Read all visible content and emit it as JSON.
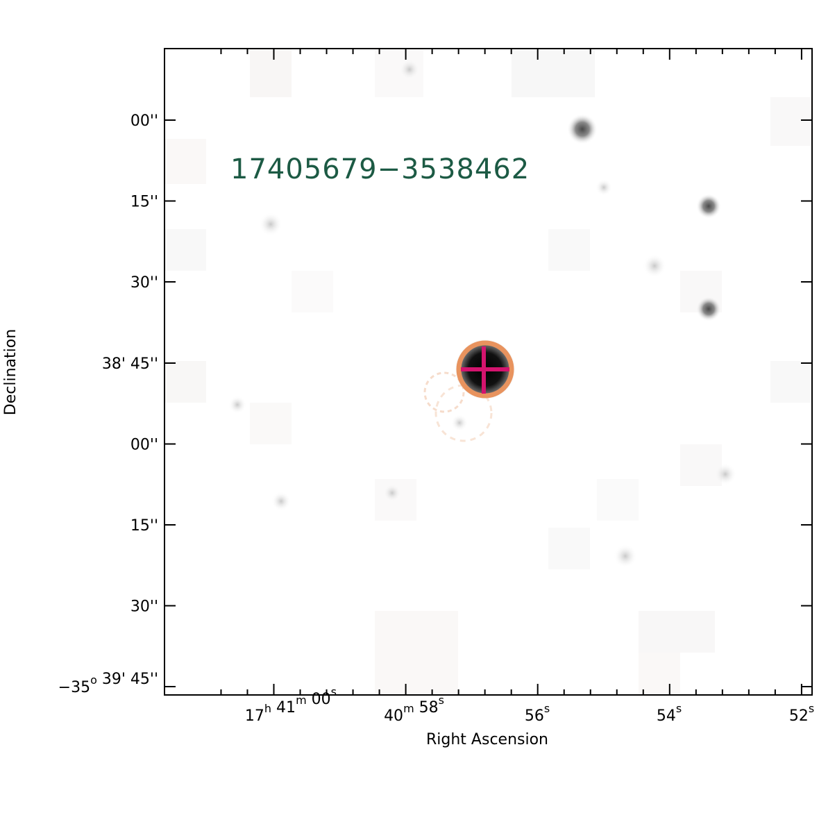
{
  "target": {
    "name": "17405679−3538462",
    "circle_color": "#e8935e",
    "cross_color": "#d4146e",
    "name_color": "#1c5a44"
  },
  "axes": {
    "xlabel": "Right Ascension",
    "ylabel": "Declination",
    "x_ticks": [
      {
        "parts": [
          [
            "17",
            "h"
          ],
          [
            " 41",
            "m"
          ],
          [
            " 00",
            "s"
          ]
        ]
      },
      {
        "parts": [
          [
            "40",
            "m"
          ],
          [
            " 58",
            "s"
          ]
        ]
      },
      {
        "parts": [
          [
            "56",
            "s"
          ]
        ]
      },
      {
        "parts": [
          [
            "54",
            "s"
          ]
        ]
      },
      {
        "parts": [
          [
            "52",
            "s"
          ]
        ]
      }
    ],
    "y_ticks": [
      {
        "parts": [
          [
            "00''",
            ""
          ]
        ]
      },
      {
        "parts": [
          [
            "15''",
            ""
          ]
        ]
      },
      {
        "parts": [
          [
            "30''",
            ""
          ]
        ]
      },
      {
        "parts": [
          [
            "38' 45''",
            ""
          ]
        ]
      },
      {
        "parts": [
          [
            "00''",
            ""
          ]
        ]
      },
      {
        "parts": [
          [
            "15''",
            ""
          ]
        ]
      },
      {
        "parts": [
          [
            "30''",
            ""
          ]
        ]
      },
      {
        "parts": [
          [
            "−35",
            "o"
          ],
          [
            " 39' 45''",
            ""
          ]
        ]
      }
    ]
  }
}
